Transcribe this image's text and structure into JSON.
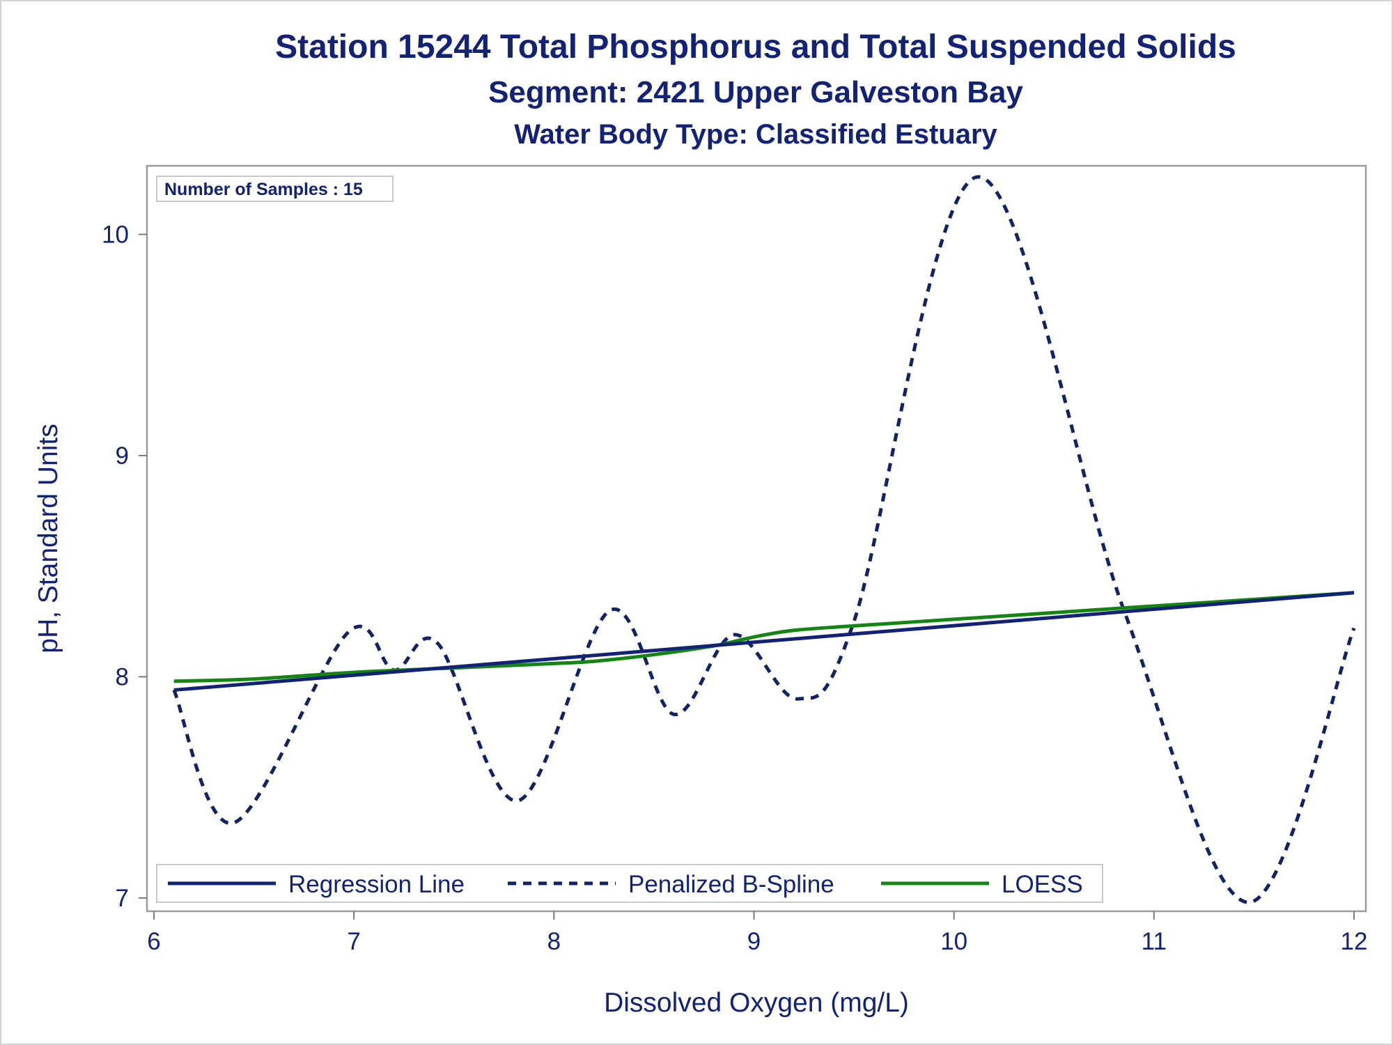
{
  "chart_data": {
    "type": "line",
    "title": "Station 15244  Total Phosphorus and Total Suspended Solids",
    "subtitle": "Segment: 2421  Upper Galveston Bay",
    "subtitle2": "Water Body Type: Classified Estuary",
    "xlabel": "Dissolved Oxygen (mg/L)",
    "ylabel": "pH, Standard Units",
    "xlim": [
      6,
      12
    ],
    "ylim": [
      6.94,
      10.31
    ],
    "xticks": [
      "6",
      "7",
      "8",
      "9",
      "10",
      "11",
      "12"
    ],
    "yticks": [
      "7",
      "8",
      "9",
      "10"
    ],
    "inset": "Number of Samples : 15",
    "grid": false,
    "legend_position": "bottom-inside",
    "colors": {
      "regression": "#112277",
      "spline": "#112266",
      "loess": "#138513",
      "text": "#112277"
    },
    "series": [
      {
        "name": "Regression Line",
        "style": "solid",
        "x": [
          6.1,
          12.0
        ],
        "y": [
          7.94,
          8.38
        ]
      },
      {
        "name": "Penalized B-Spline",
        "style": "dashed",
        "x": [
          6.1,
          6.4,
          6.97,
          7.2,
          7.42,
          7.82,
          8.28,
          8.6,
          8.9,
          9.22,
          9.5,
          10.12,
          10.85,
          11.47,
          12.0
        ],
        "y": [
          7.94,
          7.34,
          8.2,
          8.03,
          8.15,
          7.44,
          8.3,
          7.83,
          8.19,
          7.9,
          8.25,
          10.26,
          8.3,
          6.98,
          8.22
        ]
      },
      {
        "name": "LOESS",
        "style": "solid",
        "x": [
          6.1,
          6.5,
          7.0,
          7.5,
          8.0,
          8.2,
          8.5,
          8.8,
          9.0,
          9.2,
          9.5,
          10.0,
          10.5,
          11.0,
          11.5,
          12.0
        ],
        "y": [
          7.98,
          7.99,
          8.02,
          8.04,
          8.06,
          8.07,
          8.1,
          8.14,
          8.18,
          8.21,
          8.23,
          8.26,
          8.29,
          8.32,
          8.35,
          8.38
        ]
      }
    ]
  }
}
